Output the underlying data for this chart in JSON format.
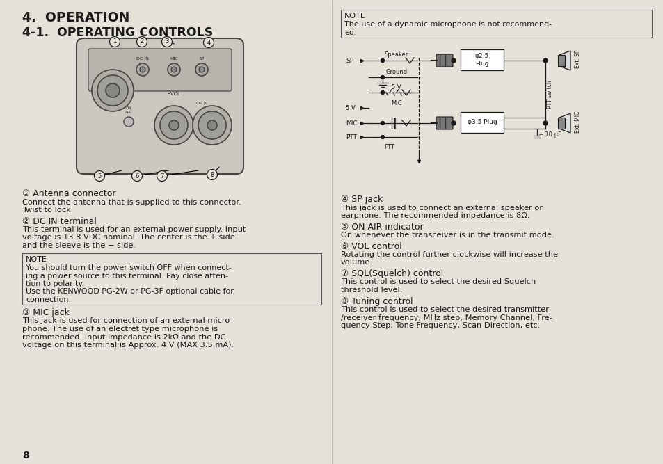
{
  "bg_color": "#e6e2da",
  "page_width": 9.54,
  "page_height": 6.67,
  "dpi": 100,
  "left_col": {
    "title1": "4.  OPERATION",
    "title2": "4-1.  OPERATING CONTROLS",
    "item1_head": "① Antenna connector",
    "item1_body1": "Connect the antenna that is supplied to this connector.",
    "item1_body2": "Twist to lock.",
    "item2_head": "② DC IN terminal",
    "item2_body1": "This terminal is used for an external power supply. Input",
    "item2_body2": "voltage is 13.8 VDC nominal. The center is the + side",
    "item2_body3": "and the sleeve is the − side.",
    "note1_head": "NOTE",
    "note1_body1": "You should turn the power switch OFF when connect-",
    "note1_body2": "ing a power source to this terminal. Pay close atten-",
    "note1_body3": "tion to polarity.",
    "note1_body4": "Use the KENWOOD PG-2W or PG-3F optional cable for",
    "note1_body5": "connection.",
    "item3_head": "③ MIC jack",
    "item3_body1": "This jack is used for connection of an external micro-",
    "item3_body2": "phone. The use of an electret type microphone is",
    "item3_body3": "recommended. Input impedance is 2kΩ and the DC",
    "item3_body4": "voltage on this terminal is Approx. 4 V (MAX 3.5 mA).",
    "page_num": "8"
  },
  "right_col": {
    "note2_head": "NOTE",
    "note2_body1": "The use of a dynamic microphone is not recommend-",
    "note2_body2": "ed.",
    "item4_head": "④ SP jack",
    "item4_body1": "This jack is used to connect an external speaker or",
    "item4_body2": "earphone. The recommended impedance is 8Ω.",
    "item5_head": "⑤ ON AIR indicator",
    "item5_body1": "On whenever the transceiver is in the transmit mode.",
    "item6_head": "⑥ VOL control",
    "item6_body1": "Rotating the control further clockwise will increase the",
    "item6_body2": "volume.",
    "item7_head": "⑦ SQL(Squelch) control",
    "item7_body1": "This control is used to select the desired Squelch",
    "item7_body2": "threshold level.",
    "item8_head": "⑧ Tuning control",
    "item8_body1": "This control is used to select the desired transmitter",
    "item8_body2": "/receiver frequency, MHz step, Memory Channel, Fre-",
    "item8_body3": "quency Step, Tone Frequency, Scan Direction, etc."
  }
}
